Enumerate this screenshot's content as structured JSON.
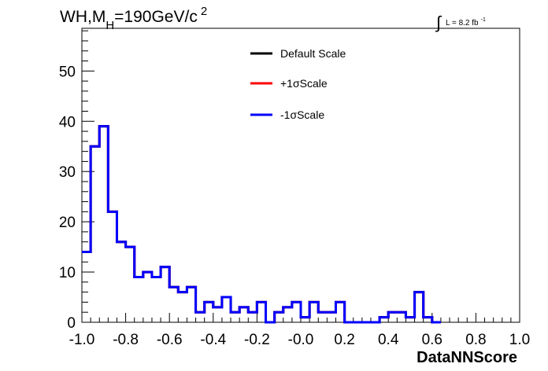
{
  "chart_data": {
    "type": "histogram",
    "title": {
      "main": "WH,M",
      "subscript": "H",
      "rest": "=190GeV/c",
      "superscript": "2"
    },
    "lumi": {
      "integral": "∫",
      "text": "L = 8.2 fb",
      "superscript": "-1"
    },
    "xlabel": "DataNNScore",
    "ylabel": "",
    "xlim": [
      -1.0,
      1.0
    ],
    "ylim": [
      0,
      58.5
    ],
    "x_ticks": [
      -1.0,
      -0.8,
      -0.6,
      -0.4,
      -0.2,
      0.0,
      0.2,
      0.4,
      0.6,
      0.8,
      1.0
    ],
    "x_tick_labels": [
      "-1.0",
      "-0.8",
      "-0.6",
      "-0.4",
      "-0.2",
      "-0.0",
      "0.2",
      "0.4",
      "0.6",
      "0.8",
      "1.0"
    ],
    "y_ticks": [
      0,
      10,
      20,
      30,
      40,
      50
    ],
    "y_tick_labels": [
      "0",
      "10",
      "20",
      "30",
      "40",
      "50"
    ],
    "bin_edges_start": -1.0,
    "bin_width": 0.04,
    "legend_position": "top-center",
    "series": [
      {
        "name": "Default Scale",
        "color": "#000000",
        "values": [
          14,
          35,
          39,
          22,
          16,
          15,
          9,
          10,
          9,
          11,
          7,
          6,
          7,
          2,
          4,
          3,
          5,
          2,
          3,
          2,
          4,
          0,
          2,
          3,
          4,
          1,
          4,
          2,
          2,
          4,
          0,
          0,
          0,
          0,
          1,
          2,
          2,
          1,
          6,
          1,
          0
        ]
      },
      {
        "name": "+1σScale",
        "color": "#ff0000",
        "values": [
          14,
          35,
          39,
          22,
          16,
          15,
          9,
          10,
          9,
          11,
          7,
          6,
          7,
          2,
          4,
          3,
          5,
          2,
          3,
          2,
          4,
          0,
          2,
          3,
          4,
          1,
          4,
          2,
          2,
          4,
          0,
          0,
          0,
          0,
          1,
          2,
          2,
          1,
          6,
          1,
          0
        ]
      },
      {
        "name": "-1σScale",
        "color": "#0000ff",
        "values": [
          14,
          35,
          39,
          22,
          16,
          15,
          9,
          10,
          9,
          11,
          7,
          6,
          7,
          2,
          4,
          3,
          5,
          2,
          3,
          2,
          4,
          0,
          2,
          3,
          4,
          1,
          4,
          2,
          2,
          4,
          0,
          0,
          0,
          0,
          1,
          2,
          2,
          1,
          6,
          1,
          0
        ]
      }
    ]
  }
}
